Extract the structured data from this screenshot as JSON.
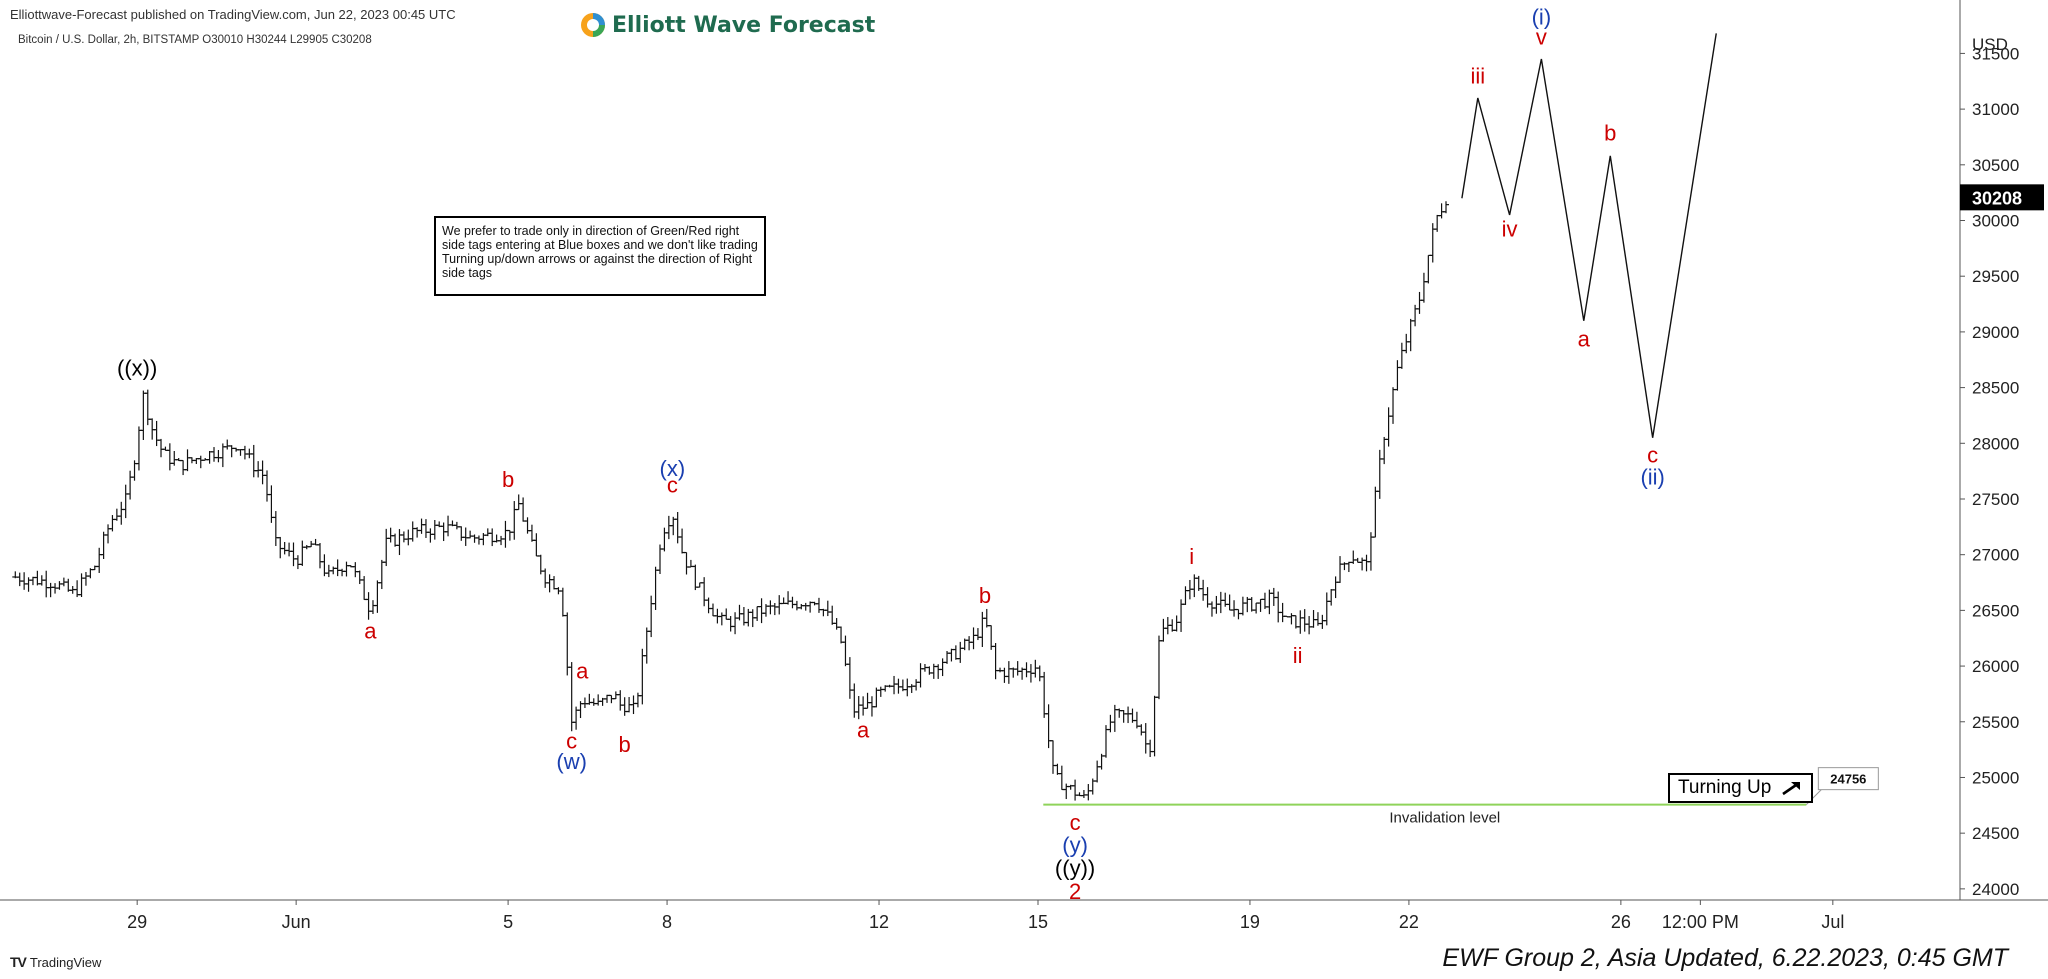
{
  "header": {
    "publisher_line": "Elliottwave-Forecast published on TradingView.com, Jun 22, 2023 00:45 UTC",
    "symbol_line": "Bitcoin / U.S. Dollar, 2h, BITSTAMP  O30010  H30244  L29905  C30208",
    "brand": "Elliott Wave Forecast"
  },
  "note_box": "We prefer to trade only in direction of Green/Red right side tags entering at Blue boxes and we don't like trading Turning up/down arrows or against the direction of Right side tags",
  "turning_up": {
    "label": "Turning Up",
    "icon": "arrow-up-right-icon"
  },
  "footer": {
    "tradingview": "TradingView",
    "update_text": "EWF Group 2, Asia Updated, 6.22.2023, 0:45 GMT"
  },
  "chart_data": {
    "type": "ohlc",
    "timeframe": "2h",
    "currency_label": "USD",
    "y_ticks": [
      24000,
      24500,
      25000,
      25500,
      26000,
      26500,
      27000,
      27500,
      28000,
      28500,
      29000,
      29500,
      30000,
      30500,
      31000,
      31500
    ],
    "ylim": [
      23900,
      31800
    ],
    "x_ticks": [
      {
        "label": "29",
        "day": 0
      },
      {
        "label": "Jun",
        "day": 3
      },
      {
        "label": "5",
        "day": 7
      },
      {
        "label": "8",
        "day": 10
      },
      {
        "label": "12",
        "day": 14
      },
      {
        "label": "15",
        "day": 17
      },
      {
        "label": "19",
        "day": 21
      },
      {
        "label": "22",
        "day": 24
      },
      {
        "label": "26",
        "day": 28
      },
      {
        "label": "12:00 PM",
        "day": 29.5
      },
      {
        "label": "Jul",
        "day": 32
      }
    ],
    "xlim": [
      -2.4,
      34.4
    ],
    "last_price": 30208,
    "last_price_color": "#000000",
    "invalidation": {
      "price": 24756,
      "label": "Invalidation level",
      "color": "#8fd35a",
      "from_day": 17.1,
      "to_day": 31.5
    },
    "price_path": [
      [
        -2.3,
        26800
      ],
      [
        -1.6,
        26750
      ],
      [
        -1.2,
        26650
      ],
      [
        -0.8,
        26900
      ],
      [
        -0.5,
        27300
      ],
      [
        -0.2,
        27500
      ],
      [
        0.0,
        28000
      ],
      [
        0.1,
        28450
      ],
      [
        0.3,
        28100
      ],
      [
        0.5,
        27900
      ],
      [
        0.8,
        27800
      ],
      [
        1.3,
        27900
      ],
      [
        1.7,
        27950
      ],
      [
        1.9,
        28000
      ],
      [
        2.2,
        27800
      ],
      [
        2.4,
        27700
      ],
      [
        2.6,
        27100
      ],
      [
        3.0,
        26950
      ],
      [
        3.3,
        27100
      ],
      [
        3.6,
        26800
      ],
      [
        4.0,
        26950
      ],
      [
        4.4,
        26500
      ],
      [
        4.7,
        27100
      ],
      [
        5.2,
        27200
      ],
      [
        5.8,
        27250
      ],
      [
        6.3,
        27150
      ],
      [
        7.0,
        27200
      ],
      [
        7.2,
        27450
      ],
      [
        7.5,
        27000
      ],
      [
        7.7,
        26800
      ],
      [
        8.0,
        26700
      ],
      [
        8.2,
        25500
      ],
      [
        8.4,
        25700
      ],
      [
        8.7,
        25650
      ],
      [
        9.0,
        25750
      ],
      [
        9.1,
        25650
      ],
      [
        9.2,
        25650
      ],
      [
        9.4,
        25600
      ],
      [
        9.7,
        26600
      ],
      [
        9.9,
        27200
      ],
      [
        10.1,
        27380
      ],
      [
        10.3,
        27000
      ],
      [
        10.6,
        26700
      ],
      [
        11.0,
        26400
      ],
      [
        11.3,
        26400
      ],
      [
        11.8,
        26500
      ],
      [
        12.3,
        26550
      ],
      [
        12.8,
        26600
      ],
      [
        13.1,
        26400
      ],
      [
        13.3,
        26200
      ],
      [
        13.5,
        25600
      ],
      [
        13.8,
        25650
      ],
      [
        14.0,
        25750
      ],
      [
        14.3,
        25800
      ],
      [
        14.7,
        25900
      ],
      [
        15.0,
        26000
      ],
      [
        15.4,
        26100
      ],
      [
        15.8,
        26250
      ],
      [
        16.0,
        26420
      ],
      [
        16.2,
        25950
      ],
      [
        16.6,
        25950
      ],
      [
        17.0,
        26000
      ],
      [
        17.3,
        25000
      ],
      [
        17.6,
        24900
      ],
      [
        17.9,
        24800
      ],
      [
        18.1,
        25100
      ],
      [
        18.4,
        25550
      ],
      [
        18.7,
        25550
      ],
      [
        18.9,
        25500
      ],
      [
        19.1,
        25200
      ],
      [
        19.3,
        26300
      ],
      [
        19.6,
        26400
      ],
      [
        19.9,
        26780
      ],
      [
        20.2,
        26600
      ],
      [
        20.6,
        26500
      ],
      [
        21.0,
        26550
      ],
      [
        21.4,
        26600
      ],
      [
        21.7,
        26400
      ],
      [
        22.0,
        26400
      ],
      [
        22.3,
        26350
      ],
      [
        22.6,
        26800
      ],
      [
        22.9,
        27000
      ],
      [
        23.2,
        26900
      ],
      [
        23.5,
        28000
      ],
      [
        23.8,
        28700
      ],
      [
        24.0,
        29000
      ],
      [
        24.2,
        29300
      ],
      [
        24.5,
        30000
      ],
      [
        24.7,
        30200
      ]
    ],
    "projection": [
      [
        25.0,
        30200
      ],
      [
        25.3,
        31100
      ],
      [
        25.9,
        30050
      ],
      [
        26.5,
        31450
      ],
      [
        27.3,
        29100
      ],
      [
        27.8,
        30580
      ],
      [
        28.6,
        28050
      ],
      [
        29.8,
        31680
      ]
    ],
    "labels": [
      {
        "text": "((x))",
        "day": 0.0,
        "price": 28680,
        "color": "#000000"
      },
      {
        "text": "a",
        "day": 4.4,
        "price": 26320,
        "color": "#cc0000"
      },
      {
        "text": "b",
        "day": 7.0,
        "price": 27680,
        "color": "#cc0000"
      },
      {
        "text": "a",
        "day": 8.4,
        "price": 25960,
        "color": "#cc0000"
      },
      {
        "text": "c",
        "day": 8.2,
        "price": 25330,
        "color": "#cc0000"
      },
      {
        "text": "(w)",
        "day": 8.2,
        "price": 25150,
        "color": "#1a3fb0"
      },
      {
        "text": "b",
        "day": 9.2,
        "price": 25300,
        "color": "#cc0000"
      },
      {
        "text": "(x)",
        "day": 10.1,
        "price": 27780,
        "color": "#1a3fb0"
      },
      {
        "text": "c",
        "day": 10.1,
        "price": 27630,
        "color": "#cc0000"
      },
      {
        "text": "a",
        "day": 13.7,
        "price": 25430,
        "color": "#cc0000"
      },
      {
        "text": "b",
        "day": 16.0,
        "price": 26640,
        "color": "#cc0000"
      },
      {
        "text": "i",
        "day": 19.9,
        "price": 26990,
        "color": "#cc0000"
      },
      {
        "text": "ii",
        "day": 21.9,
        "price": 26100,
        "color": "#cc0000"
      },
      {
        "text": "c",
        "day": 17.7,
        "price": 24600,
        "color": "#cc0000"
      },
      {
        "text": "(y)",
        "day": 17.7,
        "price": 24400,
        "color": "#1a3fb0"
      },
      {
        "text": "((y))",
        "day": 17.7,
        "price": 24190,
        "color": "#000000"
      },
      {
        "text": "2",
        "day": 17.7,
        "price": 23980,
        "color": "#cc0000"
      },
      {
        "text": "iii",
        "day": 25.3,
        "price": 31300,
        "color": "#cc0000"
      },
      {
        "text": "iv",
        "day": 25.9,
        "price": 29930,
        "color": "#cc0000"
      },
      {
        "text": "(i)",
        "day": 26.5,
        "price": 31830,
        "color": "#1a3fb0"
      },
      {
        "text": "v",
        "day": 26.5,
        "price": 31650,
        "color": "#cc0000"
      },
      {
        "text": "a",
        "day": 27.3,
        "price": 28940,
        "color": "#cc0000"
      },
      {
        "text": "b",
        "day": 27.8,
        "price": 30790,
        "color": "#cc0000"
      },
      {
        "text": "c",
        "day": 28.6,
        "price": 27900,
        "color": "#cc0000"
      },
      {
        "text": "(ii)",
        "day": 28.6,
        "price": 27700,
        "color": "#1a3fb0"
      }
    ]
  }
}
